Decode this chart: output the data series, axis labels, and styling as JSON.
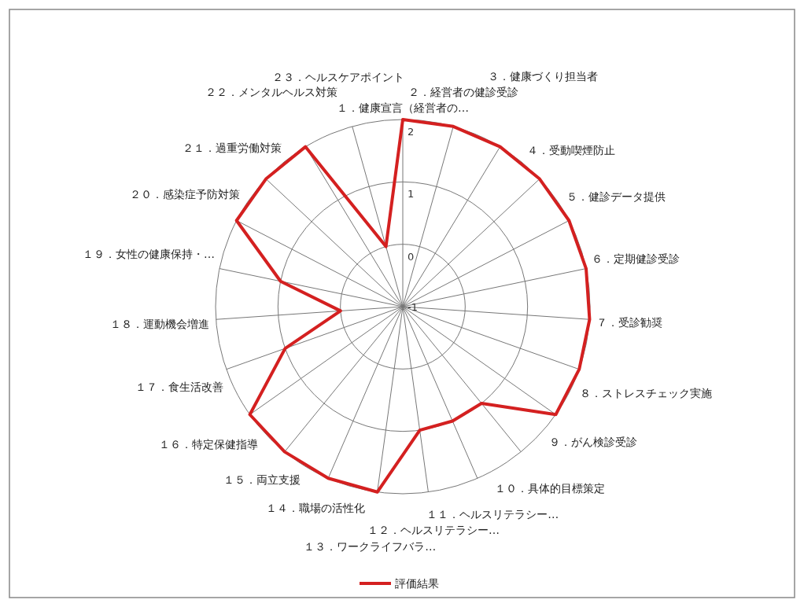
{
  "chart_data": {
    "type": "radar",
    "categories": [
      "１．健康宣言（経営者の…",
      "２．経営者の健診受診",
      "３．健康づくり担当者",
      "４．受動喫煙防止",
      "５．健診データ提供",
      "６．定期健診受診",
      "７．受診勧奨",
      "８．ストレスチェック実施",
      "９．がん検診受診",
      "１０．具体的目標策定",
      "１１．ヘルスリテラシー…",
      "１２．ヘルスリテラシー…",
      "１３．ワークライフバラ…",
      "１４．職場の活性化",
      "１５．両立支援",
      "１６．特定保健指導",
      "１７．食生活改善",
      "１８．運動機会増進",
      "１９．女性の健康保持・…",
      "２０．感染症予防対策",
      "２１．過重労働対策",
      "２２．メンタルヘルス対策",
      "２３．ヘルスケアポイント"
    ],
    "series": [
      {
        "name": "評価結果",
        "color": "#d42020",
        "values": [
          2,
          2,
          2,
          2,
          2,
          2,
          2,
          2,
          2,
          1,
          1,
          1,
          2,
          2,
          2,
          2,
          1,
          0,
          1,
          2,
          2,
          2,
          0
        ]
      }
    ],
    "ylim": [
      -1,
      2
    ],
    "yticks": [
      -1,
      0,
      1,
      2
    ],
    "grid": true,
    "legend": "bottom"
  }
}
